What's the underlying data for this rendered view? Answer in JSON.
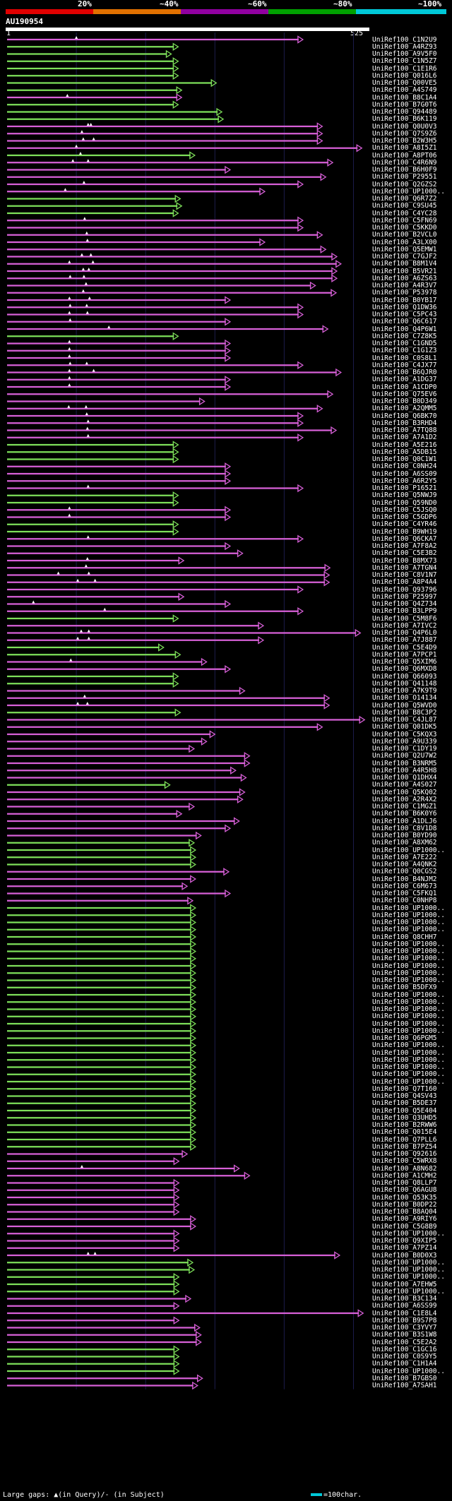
{
  "legend": {
    "labels": [
      "20%",
      "~40%",
      "~60%",
      "~80%",
      "~100%"
    ],
    "colors": [
      "#e00000",
      "#e07000",
      "#9000a0",
      "#00a000",
      "#00c8d8"
    ]
  },
  "query": {
    "name": "AU190954",
    "start": "1",
    "end": "525"
  },
  "colors": {
    "green": "#7ee05a",
    "magenta": "#d860d8",
    "grid": "#1c1c4c"
  },
  "hits": [
    [
      "UniRef100_C1N2U9",
      427,
      "m",
      [
        100
      ]
    ],
    [
      "UniRef100_A4RZ93",
      247,
      "g",
      []
    ],
    [
      "UniRef100_A9V5F0",
      237,
      "g",
      []
    ],
    [
      "UniRef100_C1N5Z7",
      247,
      "g",
      []
    ],
    [
      "UniRef100_C1E1R6",
      247,
      "g",
      []
    ],
    [
      "UniRef100_Q016L6",
      247,
      "g",
      []
    ],
    [
      "UniRef100_Q00VE5",
      302,
      "g",
      []
    ],
    [
      "UniRef100_A4S749",
      252,
      "g",
      []
    ],
    [
      "UniRef100_B8C1A4",
      252,
      "m",
      [
        87
      ]
    ],
    [
      "UniRef100_B7G0T6",
      247,
      "g",
      []
    ],
    [
      "UniRef100_Q94489",
      310,
      "g",
      []
    ],
    [
      "UniRef100_B6K119",
      312,
      "g",
      []
    ],
    [
      "UniRef100_Q0U0V3",
      455,
      "m",
      [
        117,
        121
      ]
    ],
    [
      "UniRef100_Q7S9Z6",
      455,
      "m",
      [
        108
      ]
    ],
    [
      "UniRef100_B2W3H5",
      455,
      "m",
      [
        110,
        125
      ]
    ],
    [
      "UniRef100_A8I5Z1",
      512,
      "m",
      [
        100
      ]
    ],
    [
      "UniRef100_A8PT06",
      271,
      "g",
      [
        106
      ]
    ],
    [
      "UniRef100_C4R6N9",
      470,
      "m",
      [
        95,
        117
      ]
    ],
    [
      "UniRef100_B6H0F9",
      322,
      "m",
      []
    ],
    [
      "UniRef100_P29551",
      460,
      "m",
      []
    ],
    [
      "UniRef100_Q2GZS2",
      427,
      "m",
      [
        111
      ]
    ],
    [
      "UniRef100_UP1000..",
      372,
      "m",
      [
        84
      ]
    ],
    [
      "UniRef100_Q6R7Z2",
      250,
      "g",
      []
    ],
    [
      "UniRef100_C9SU45",
      252,
      "g",
      []
    ],
    [
      "UniRef100_C4YC28",
      247,
      "g",
      []
    ],
    [
      "UniRef100_C5FN69",
      427,
      "m",
      [
        112
      ]
    ],
    [
      "UniRef100_C5KKD0",
      427,
      "m",
      []
    ],
    [
      "UniRef100_B2VCL0",
      455,
      "m",
      [
        115
      ]
    ],
    [
      "UniRef100_A3LX00",
      372,
      "m",
      [
        116
      ]
    ],
    [
      "UniRef100_Q5EMW1",
      460,
      "m",
      []
    ],
    [
      "UniRef100_C7GJF2",
      476,
      "m",
      [
        108,
        121
      ]
    ],
    [
      "UniRef100_B8M1V4",
      482,
      "m",
      [
        90,
        124
      ]
    ],
    [
      "UniRef100_B5VR21",
      476,
      "m",
      [
        110,
        118
      ]
    ],
    [
      "UniRef100_A6ZS63",
      476,
      "m",
      [
        91,
        111
      ]
    ],
    [
      "UniRef100_A4R3V7",
      445,
      "m",
      [
        114
      ]
    ],
    [
      "UniRef100_P53978",
      475,
      "m",
      [
        110
      ]
    ],
    [
      "UniRef100_B0YB17",
      322,
      "m",
      [
        90,
        119
      ]
    ],
    [
      "UniRef100_Q1DW36",
      427,
      "m",
      [
        91,
        115
      ]
    ],
    [
      "UniRef100_C5PC43",
      427,
      "m",
      [
        90,
        116
      ]
    ],
    [
      "UniRef100_Q6C617",
      322,
      "m",
      [
        91
      ]
    ],
    [
      "UniRef100_Q4P6W1",
      463,
      "m",
      [
        147
      ]
    ],
    [
      "UniRef100_C7Z8K5",
      247,
      "g",
      []
    ],
    [
      "UniRef100_C1GND5",
      322,
      "m",
      [
        90
      ]
    ],
    [
      "UniRef100_C1G1Z3",
      322,
      "m",
      [
        90
      ]
    ],
    [
      "UniRef100_C0S8L1",
      322,
      "m",
      [
        90
      ]
    ],
    [
      "UniRef100_C4JX77",
      427,
      "m",
      [
        91,
        115
      ]
    ],
    [
      "UniRef100_B6QJR0",
      482,
      "m",
      [
        90,
        125
      ]
    ],
    [
      "UniRef100_A1DG37",
      322,
      "m",
      [
        90
      ]
    ],
    [
      "UniRef100_A1CDP0",
      322,
      "m",
      [
        90
      ]
    ],
    [
      "UniRef100_Q75EV6",
      470,
      "m",
      []
    ],
    [
      "UniRef100_B0D349",
      285,
      "m",
      []
    ],
    [
      "UniRef100_A2QMM5",
      455,
      "m",
      [
        89,
        114
      ]
    ],
    [
      "UniRef100_Q6BK70",
      427,
      "m",
      [
        115
      ]
    ],
    [
      "UniRef100_B3RHD4",
      427,
      "m",
      [
        117
      ]
    ],
    [
      "UniRef100_A7TQ88",
      475,
      "m",
      [
        116
      ]
    ],
    [
      "UniRef100_A7A1D2",
      427,
      "m",
      [
        117
      ]
    ],
    [
      "UniRef100_A5E216",
      247,
      "g",
      []
    ],
    [
      "UniRef100_A5DB15",
      247,
      "g",
      []
    ],
    [
      "UniRef100_Q0C1W1",
      247,
      "g",
      []
    ],
    [
      "UniRef100_C0NH24",
      322,
      "m",
      []
    ],
    [
      "UniRef100_A6SS09",
      322,
      "m",
      []
    ],
    [
      "UniRef100_A6R2Y5",
      322,
      "m",
      []
    ],
    [
      "UniRef100_P16521",
      427,
      "m",
      [
        117
      ]
    ],
    [
      "UniRef100_Q5NWJ9",
      247,
      "g",
      []
    ],
    [
      "UniRef100_Q59ND0",
      247,
      "g",
      []
    ],
    [
      "UniRef100_C5JSQ0",
      322,
      "m",
      [
        90
      ]
    ],
    [
      "UniRef100_C5GDP6",
      322,
      "m",
      [
        90
      ]
    ],
    [
      "UniRef100_C4YR46",
      247,
      "g",
      []
    ],
    [
      "UniRef100_B9WH19",
      247,
      "g",
      []
    ],
    [
      "UniRef100_Q6CKA7",
      427,
      "m",
      [
        117
      ]
    ],
    [
      "UniRef100_A7F8A2",
      322,
      "m",
      []
    ],
    [
      "UniRef100_C5E3B2",
      340,
      "m",
      []
    ],
    [
      "UniRef100_B8MX73",
      255,
      "m",
      [
        116
      ]
    ],
    [
      "UniRef100_A7TGN4",
      466,
      "m",
      [
        114
      ]
    ],
    [
      "UniRef100_C8V1N7",
      465,
      "m",
      [
        74,
        118
      ]
    ],
    [
      "UniRef100_A8P4A4",
      465,
      "m",
      [
        102,
        127
      ]
    ],
    [
      "UniRef100_Q93796",
      427,
      "m",
      []
    ],
    [
      "UniRef100_P25997",
      255,
      "m",
      []
    ],
    [
      "UniRef100_Q4Z734",
      322,
      "m",
      [
        38
      ]
    ],
    [
      "UniRef100_B3LPP9",
      427,
      "m",
      [
        141
      ]
    ],
    [
      "UniRef100_C5M8F6",
      247,
      "g",
      []
    ],
    [
      "UniRef100_A7IVC2",
      370,
      "m",
      []
    ],
    [
      "UniRef100_Q4P6L0",
      510,
      "m",
      [
        107,
        118
      ]
    ],
    [
      "UniRef100_A7J887",
      370,
      "m",
      [
        102,
        118
      ]
    ],
    [
      "UniRef100_C5E4D9",
      226,
      "g",
      []
    ],
    [
      "UniRef100_A7PCP1",
      250,
      "g",
      []
    ],
    [
      "UniRef100_Q5XIM6",
      288,
      "m",
      [
        92
      ]
    ],
    [
      "UniRef100_Q6MXD8",
      322,
      "m",
      []
    ],
    [
      "UniRef100_Q66093",
      247,
      "g",
      []
    ],
    [
      "UniRef100_Q41148",
      247,
      "g",
      []
    ],
    [
      "UniRef100_A7K9T9",
      343,
      "m",
      []
    ],
    [
      "UniRef100_O14134",
      465,
      "m",
      [
        112
      ]
    ],
    [
      "UniRef100_Q5WVD0",
      465,
      "m",
      [
        102,
        116
      ]
    ],
    [
      "UniRef100_B8C3P2",
      250,
      "g",
      []
    ],
    [
      "UniRef100_C4JL87",
      516,
      "m",
      []
    ],
    [
      "UniRef100_Q01DK5",
      455,
      "m",
      []
    ],
    [
      "UniRef100_C5KQX3",
      300,
      "m",
      []
    ],
    [
      "UniRef100_A9U339",
      288,
      "m",
      []
    ],
    [
      "UniRef100_C1DY19",
      270,
      "m",
      []
    ],
    [
      "UniRef100_Q2U7W2",
      350,
      "m",
      []
    ],
    [
      "UniRef100_B3NRM5",
      350,
      "m",
      []
    ],
    [
      "UniRef100_A4R5H8",
      330,
      "m",
      []
    ],
    [
      "UniRef100_Q1DHX4",
      345,
      "m",
      []
    ],
    [
      "UniRef100_A4S027",
      235,
      "g",
      []
    ],
    [
      "UniRef100_Q5KQ02",
      343,
      "m",
      []
    ],
    [
      "UniRef100_A2R4X2",
      340,
      "m",
      []
    ],
    [
      "UniRef100_C1MGZ1",
      270,
      "m",
      []
    ],
    [
      "UniRef100_B6K0Y6",
      252,
      "m",
      []
    ],
    [
      "UniRef100_A1DLJ6",
      335,
      "m",
      []
    ],
    [
      "UniRef100_C8V1D8",
      322,
      "m",
      []
    ],
    [
      "UniRef100_B0YD90",
      280,
      "m",
      []
    ],
    [
      "UniRef100_A8XM62",
      270,
      "g",
      []
    ],
    [
      "UniRef100_UP1000..",
      272,
      "g",
      []
    ],
    [
      "UniRef100_A7E222",
      272,
      "g",
      []
    ],
    [
      "UniRef100_A4QNK2",
      272,
      "g",
      []
    ],
    [
      "UniRef100_Q0CGS2",
      320,
      "m",
      []
    ],
    [
      "UniRef100_B4NJM2",
      272,
      "m",
      []
    ],
    [
      "UniRef100_C6M673",
      260,
      "m",
      []
    ],
    [
      "UniRef100_C5FKQ1",
      322,
      "m",
      []
    ],
    [
      "UniRef100_C0NHP8",
      268,
      "m",
      []
    ],
    [
      "UniRef100_UP1000..",
      272,
      "g",
      []
    ],
    [
      "UniRef100_UP1000..",
      272,
      "g",
      []
    ],
    [
      "UniRef100_UP1000..",
      272,
      "g",
      []
    ],
    [
      "UniRef100_UP1000..",
      272,
      "g",
      []
    ],
    [
      "UniRef100_Q8CHH7",
      272,
      "g",
      []
    ],
    [
      "UniRef100_UP1000..",
      272,
      "g",
      []
    ],
    [
      "UniRef100_UP1000..",
      272,
      "g",
      []
    ],
    [
      "UniRef100_UP1000..",
      272,
      "g",
      []
    ],
    [
      "UniRef100_UP1000..",
      272,
      "g",
      []
    ],
    [
      "UniRef100_UP1000..",
      272,
      "g",
      []
    ],
    [
      "UniRef100_UP1000..",
      272,
      "g",
      []
    ],
    [
      "UniRef100_B5DFX9",
      272,
      "g",
      []
    ],
    [
      "UniRef100_UP1000..",
      272,
      "g",
      []
    ],
    [
      "UniRef100_UP1000..",
      272,
      "g",
      []
    ],
    [
      "UniRef100_UP1000..",
      272,
      "g",
      []
    ],
    [
      "UniRef100_UP1000..",
      272,
      "g",
      []
    ],
    [
      "UniRef100_UP1000..",
      272,
      "g",
      []
    ],
    [
      "UniRef100_UP1000..",
      272,
      "g",
      []
    ],
    [
      "UniRef100_Q6PGM5",
      272,
      "g",
      []
    ],
    [
      "UniRef100_UP1000..",
      272,
      "g",
      []
    ],
    [
      "UniRef100_UP1000..",
      272,
      "g",
      []
    ],
    [
      "UniRef100_UP1000..",
      272,
      "g",
      []
    ],
    [
      "UniRef100_UP1000..",
      272,
      "g",
      []
    ],
    [
      "UniRef100_UP1000..",
      272,
      "g",
      []
    ],
    [
      "UniRef100_UP1000..",
      272,
      "g",
      []
    ],
    [
      "UniRef100_Q7T160",
      272,
      "g",
      []
    ],
    [
      "UniRef100_Q4SV43",
      272,
      "g",
      []
    ],
    [
      "UniRef100_B5DE37",
      272,
      "g",
      []
    ],
    [
      "UniRef100_Q5E404",
      272,
      "g",
      []
    ],
    [
      "UniRef100_Q3UHD5",
      272,
      "g",
      []
    ],
    [
      "UniRef100_B2RWW6",
      272,
      "g",
      []
    ],
    [
      "UniRef100_Q015E4",
      272,
      "g",
      []
    ],
    [
      "UniRef100_Q7PLL6",
      272,
      "g",
      []
    ],
    [
      "UniRef100_B7PZ54",
      272,
      "g",
      []
    ],
    [
      "UniRef100_Q92616",
      260,
      "m",
      []
    ],
    [
      "UniRef100_C5WRX8",
      248,
      "m",
      []
    ],
    [
      "UniRef100_A8N682",
      335,
      "m",
      [
        108
      ]
    ],
    [
      "UniRef100_A1CMH2",
      350,
      "m",
      []
    ],
    [
      "UniRef100_Q8LLP7",
      248,
      "m",
      []
    ],
    [
      "UniRef100_Q6AGU8",
      248,
      "m",
      []
    ],
    [
      "UniRef100_Q53K35",
      248,
      "m",
      []
    ],
    [
      "UniRef100_B0DP22",
      248,
      "m",
      []
    ],
    [
      "UniRef100_B8AQ04",
      248,
      "m",
      []
    ],
    [
      "UniRef100_A9RIY6",
      272,
      "m",
      []
    ],
    [
      "UniRef100_C5G8B9",
      272,
      "m",
      []
    ],
    [
      "UniRef100_UP1000..",
      248,
      "m",
      []
    ],
    [
      "UniRef100_Q9XIP5",
      248,
      "m",
      []
    ],
    [
      "UniRef100_A7PZ14",
      248,
      "m",
      []
    ],
    [
      "UniRef100_B0D0X3",
      480,
      "m",
      [
        117,
        127
      ]
    ],
    [
      "UniRef100_UP1000..",
      268,
      "g",
      []
    ],
    [
      "UniRef100_UP1000..",
      270,
      "g",
      []
    ],
    [
      "UniRef100_UP1000..",
      248,
      "g",
      []
    ],
    [
      "UniRef100_A7EHW5",
      248,
      "g",
      []
    ],
    [
      "UniRef100_UP1000..",
      248,
      "g",
      []
    ],
    [
      "UniRef100_B3C134",
      265,
      "m",
      []
    ],
    [
      "UniRef100_A6SS99",
      248,
      "m",
      []
    ],
    [
      "UniRef100_C1E8L4",
      514,
      "m",
      []
    ],
    [
      "UniRef100_B9S7P8",
      248,
      "m",
      []
    ],
    [
      "UniRef100_C3YVY7",
      278,
      "m",
      []
    ],
    [
      "UniRef100_B3S1W8",
      280,
      "m",
      []
    ],
    [
      "UniRef100_C5E2A2",
      280,
      "m",
      []
    ],
    [
      "UniRef100_C1GC16",
      248,
      "g",
      []
    ],
    [
      "UniRef100_C0S9Y5",
      248,
      "g",
      []
    ],
    [
      "UniRef100_C1H1A4",
      248,
      "g",
      []
    ],
    [
      "UniRef100_UP1000..",
      248,
      "g",
      []
    ],
    [
      "UniRef100_B7GBS0",
      282,
      "m",
      []
    ],
    [
      "UniRef100_A7SAH1",
      275,
      "m",
      []
    ]
  ],
  "footer": {
    "large_gaps": "Large gaps: ▲(in Query)/- (in Subject)",
    "scale": "=100char."
  }
}
